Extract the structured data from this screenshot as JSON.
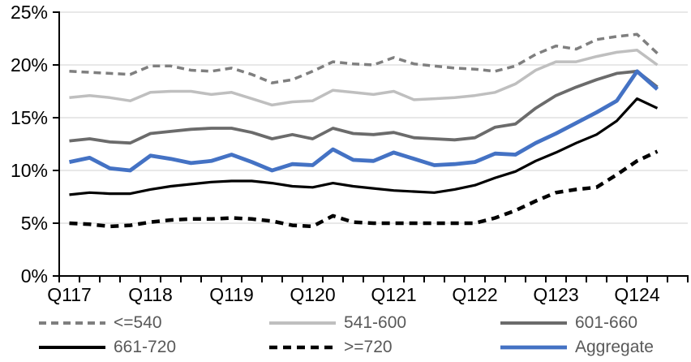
{
  "chart_data": {
    "type": "line",
    "title": "",
    "categories": [
      "Q117",
      "Q217",
      "Q317",
      "Q417",
      "Q118",
      "Q218",
      "Q318",
      "Q418",
      "Q119",
      "Q219",
      "Q319",
      "Q419",
      "Q120",
      "Q220",
      "Q320",
      "Q420",
      "Q121",
      "Q221",
      "Q321",
      "Q421",
      "Q122",
      "Q222",
      "Q322",
      "Q422",
      "Q123",
      "Q223",
      "Q323",
      "Q423",
      "Q124",
      "Q224"
    ],
    "x_ticks": {
      "labels": [
        "Q117",
        "Q118",
        "Q119",
        "Q120",
        "Q121",
        "Q122",
        "Q123",
        "Q124"
      ],
      "indices": [
        0,
        4,
        8,
        12,
        16,
        20,
        24,
        28
      ]
    },
    "y_ticks": {
      "labels": [
        "0%",
        "5%",
        "10%",
        "15%",
        "20%",
        "25%"
      ],
      "values": [
        0,
        5,
        10,
        15,
        20,
        25
      ]
    },
    "ylim": [
      0,
      25
    ],
    "grid": true,
    "legend_position": "bottom",
    "series": [
      {
        "name": "<=540",
        "color": "#7F7F7F",
        "line_style": "dashed",
        "dash": "9 6",
        "width": 3.5,
        "values": [
          19.4,
          19.3,
          19.2,
          19.1,
          19.9,
          19.9,
          19.5,
          19.4,
          19.7,
          19.1,
          18.3,
          18.6,
          19.4,
          20.3,
          20.1,
          20.0,
          20.7,
          20.1,
          19.9,
          19.7,
          19.6,
          19.4,
          19.9,
          21.0,
          21.8,
          21.5,
          22.4,
          22.7,
          22.9,
          21.1
        ]
      },
      {
        "name": "541-600",
        "color": "#BFBFBF",
        "line_style": "solid",
        "dash": null,
        "width": 3.5,
        "values": [
          16.9,
          17.1,
          16.9,
          16.6,
          17.4,
          17.5,
          17.5,
          17.2,
          17.4,
          16.8,
          16.2,
          16.5,
          16.6,
          17.6,
          17.4,
          17.2,
          17.5,
          16.7,
          16.8,
          16.9,
          17.1,
          17.4,
          18.2,
          19.5,
          20.3,
          20.3,
          20.8,
          21.2,
          21.4,
          20.0
        ]
      },
      {
        "name": "601-660",
        "color": "#6B6B6B",
        "line_style": "solid",
        "dash": null,
        "width": 3.8,
        "values": [
          12.8,
          13.0,
          12.7,
          12.6,
          13.5,
          13.7,
          13.9,
          14.0,
          14.0,
          13.6,
          13.0,
          13.4,
          13.0,
          14.0,
          13.5,
          13.4,
          13.6,
          13.1,
          13.0,
          12.9,
          13.1,
          14.1,
          14.4,
          15.9,
          17.1,
          17.9,
          18.6,
          19.2,
          19.4,
          17.9
        ]
      },
      {
        "name": "661-720",
        "color": "#000000",
        "line_style": "solid",
        "dash": null,
        "width": 3.2,
        "values": [
          7.7,
          7.9,
          7.8,
          7.8,
          8.2,
          8.5,
          8.7,
          8.9,
          9.0,
          9.0,
          8.8,
          8.5,
          8.4,
          8.8,
          8.5,
          8.3,
          8.1,
          8.0,
          7.9,
          8.2,
          8.6,
          9.3,
          9.9,
          10.9,
          11.7,
          12.6,
          13.4,
          14.7,
          16.8,
          15.9
        ]
      },
      {
        "name": ">=720",
        "color": "#000000",
        "line_style": "dashed",
        "dash": "10 7",
        "width": 4.5,
        "values": [
          5.0,
          4.9,
          4.7,
          4.8,
          5.1,
          5.3,
          5.4,
          5.4,
          5.5,
          5.4,
          5.2,
          4.8,
          4.7,
          5.7,
          5.1,
          5.0,
          5.0,
          5.0,
          5.0,
          5.0,
          5.0,
          5.5,
          6.2,
          7.1,
          7.9,
          8.2,
          8.4,
          9.6,
          10.9,
          11.8
        ]
      },
      {
        "name": "Aggregate",
        "color": "#4472C4",
        "line_style": "solid",
        "dash": null,
        "width": 4.8,
        "values": [
          10.8,
          11.2,
          10.2,
          10.0,
          11.4,
          11.1,
          10.7,
          10.9,
          11.5,
          10.8,
          10.0,
          10.6,
          10.5,
          12.0,
          11.0,
          10.9,
          11.7,
          11.1,
          10.5,
          10.6,
          10.8,
          11.6,
          11.5,
          12.6,
          13.5,
          14.5,
          15.5,
          16.6,
          19.4,
          17.7
        ]
      }
    ]
  },
  "colors": {
    "background": "#FFFFFF",
    "gridline": "#D9D9D9",
    "axis": "#000000",
    "legend_text": "#595959",
    "accent_blue": "#4472C4"
  }
}
